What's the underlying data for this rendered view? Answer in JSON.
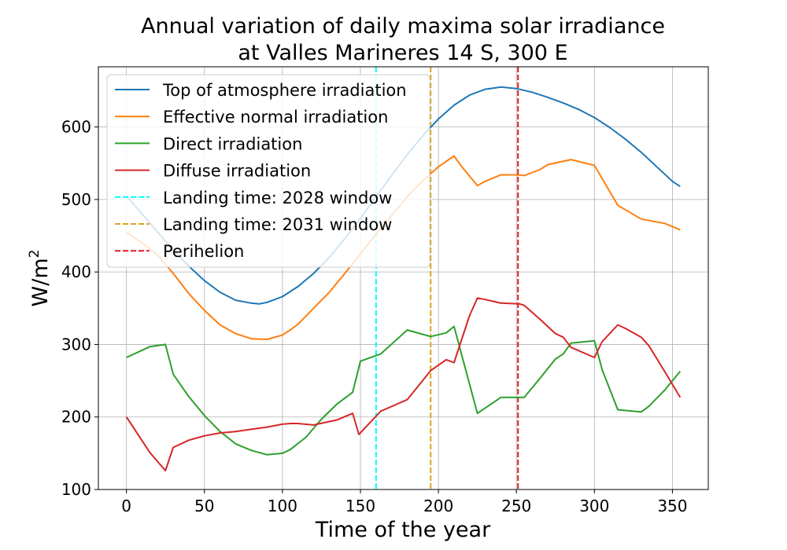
{
  "chart_data": {
    "type": "line",
    "title_lines": [
      "Annual variation of daily maxima solar irradiance",
      "at Valles Marineres 14 S, 300 E"
    ],
    "xlabel": "Time of the year",
    "ylabel": "W/m",
    "ylabel_superscript": "2",
    "xlim": [
      -18,
      373
    ],
    "ylim": [
      100,
      683
    ],
    "xticks": [
      0,
      50,
      100,
      150,
      200,
      250,
      300,
      350
    ],
    "yticks": [
      100,
      200,
      300,
      400,
      500,
      600
    ],
    "grid": true,
    "legend_position": "top-left",
    "series": [
      {
        "name": "Top of atmosphere irradiation",
        "color": "#1f77b4",
        "x": [
          0,
          10,
          20,
          30,
          40,
          50,
          60,
          70,
          80,
          85,
          90,
          100,
          110,
          120,
          130,
          140,
          150,
          160,
          170,
          180,
          190,
          200,
          210,
          220,
          230,
          240,
          250,
          260,
          270,
          280,
          290,
          300,
          310,
          320,
          330,
          340,
          350,
          355
        ],
        "y": [
          505,
          480,
          455,
          430,
          408,
          388,
          372,
          361,
          357,
          356,
          358,
          366,
          380,
          398,
          420,
          446,
          474,
          504,
          533,
          562,
          588,
          611,
          630,
          644,
          652,
          655,
          653,
          648,
          641,
          633,
          624,
          613,
          599,
          583,
          565,
          545,
          525,
          518
        ]
      },
      {
        "name": "Effective normal irradiation",
        "color": "#ff7f0e",
        "x": [
          0,
          10,
          20,
          30,
          40,
          50,
          60,
          70,
          80,
          90,
          100,
          105,
          110,
          120,
          130,
          140,
          150,
          160,
          170,
          180,
          190,
          200,
          210,
          215,
          225,
          230,
          240,
          250,
          255,
          265,
          270,
          285,
          300,
          315,
          330,
          345,
          355
        ],
        "y": [
          455,
          440,
          423,
          398,
          370,
          347,
          327,
          315,
          308,
          307,
          313,
          320,
          328,
          350,
          372,
          398,
          425,
          452,
          478,
          504,
          526,
          545,
          560,
          545,
          519,
          525,
          534,
          534,
          533,
          541,
          548,
          555,
          547,
          492,
          473,
          467,
          458
        ]
      },
      {
        "name": "Direct irradiation",
        "color": "#2ca02c",
        "x": [
          0,
          15,
          25,
          30,
          40,
          50,
          60,
          70,
          80,
          90,
          100,
          105,
          115,
          125,
          135,
          145,
          150,
          163,
          180,
          195,
          205,
          210,
          225,
          240,
          250,
          255,
          265,
          275,
          280,
          285,
          300,
          305,
          315,
          330,
          335,
          345,
          355
        ],
        "y": [
          282,
          297,
          300,
          259,
          228,
          202,
          180,
          163,
          154,
          148,
          150,
          155,
          172,
          197,
          218,
          234,
          277,
          287,
          320,
          311,
          316,
          325,
          205,
          227,
          227,
          227,
          253,
          280,
          287,
          302,
          305,
          265,
          210,
          207,
          215,
          237,
          263
        ]
      },
      {
        "name": "Diffuse irradiation",
        "color": "#d62728",
        "x": [
          0,
          15,
          25,
          30,
          40,
          50,
          60,
          70,
          80,
          90,
          100,
          105,
          110,
          120,
          135,
          145,
          149,
          163,
          180,
          195,
          205,
          210,
          220,
          225,
          230,
          240,
          252,
          255,
          265,
          275,
          280,
          285,
          300,
          305,
          315,
          320,
          330,
          335,
          345,
          355
        ],
        "y": [
          200,
          151,
          126,
          158,
          168,
          174,
          178,
          180,
          183,
          186,
          190,
          191,
          191,
          189,
          196,
          205,
          176,
          208,
          224,
          264,
          279,
          275,
          340,
          364,
          362,
          357,
          356,
          354,
          335,
          315,
          310,
          296,
          282,
          304,
          327,
          322,
          310,
          298,
          263,
          227
        ]
      }
    ],
    "vlines": [
      {
        "name": "Landing time: 2028 window",
        "x": 160,
        "color": "#00ffff"
      },
      {
        "name": "Landing time: 2031 window",
        "x": 195,
        "color": "#daa520"
      },
      {
        "name": "Perihelion",
        "x": 251,
        "color": "#e41a1c"
      }
    ]
  }
}
